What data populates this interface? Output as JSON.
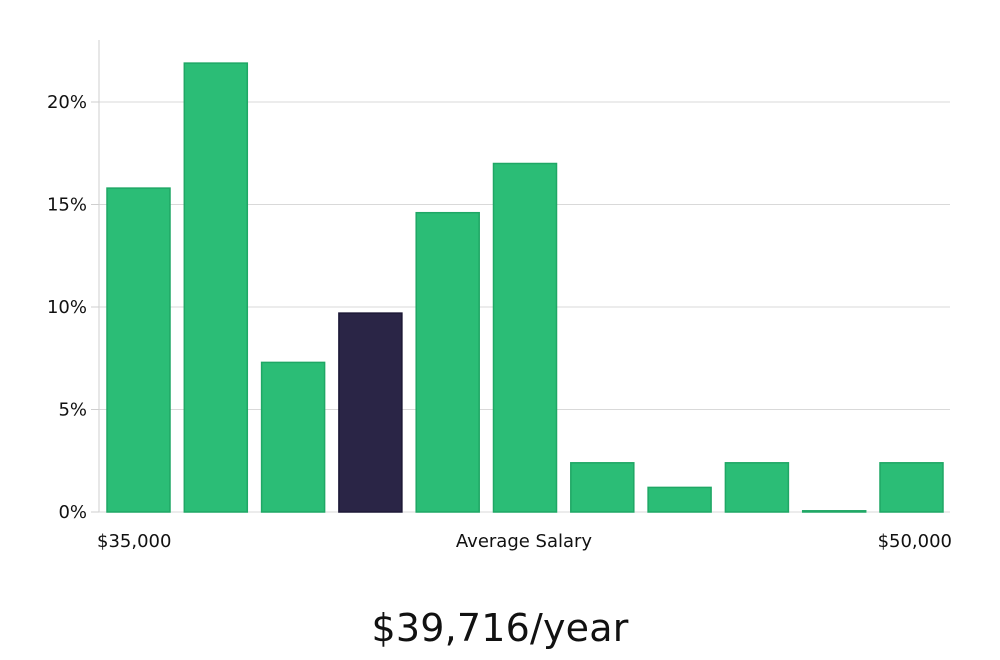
{
  "chart_data": {
    "type": "bar",
    "title": "",
    "xlabel": "Average Salary",
    "ylabel": "",
    "x_range_labels": {
      "min": "$35,000",
      "max": "$50,000"
    },
    "yticks": [
      0,
      5,
      10,
      15,
      20
    ],
    "ytick_labels": [
      "0%",
      "5%",
      "10%",
      "15%",
      "20%"
    ],
    "ylim": [
      0,
      23
    ],
    "grid": true,
    "values": [
      15.8,
      21.9,
      7.3,
      9.7,
      14.6,
      17.0,
      2.4,
      1.2,
      2.4,
      0.05,
      2.4
    ],
    "highlight_index": 3,
    "colors": {
      "bar": "#2bbd76",
      "bar_edge": "#1fa765",
      "highlight": "#2a2546",
      "grid": "#d9d9d9",
      "axis": "#cfcfcf",
      "text": "#111111"
    }
  },
  "summary": {
    "salary_text": "$39,716/year"
  }
}
